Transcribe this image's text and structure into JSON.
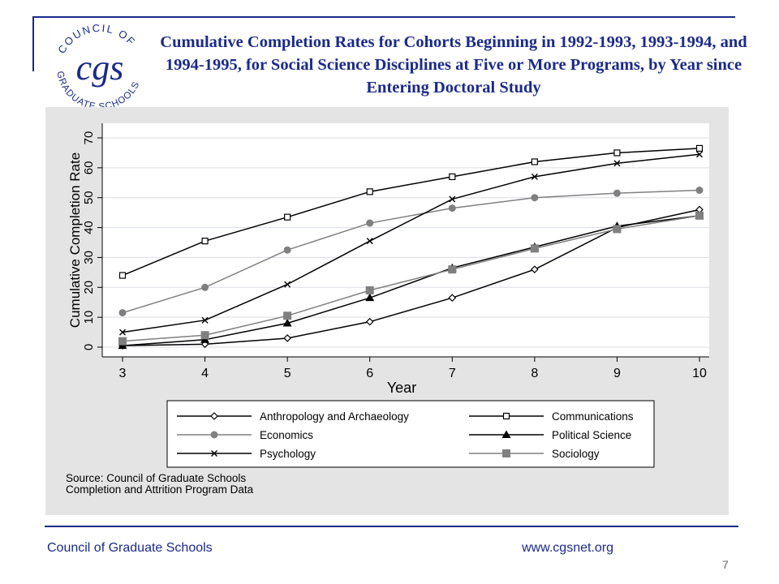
{
  "slide": {
    "title": "Cumulative Completion Rates for Cohorts Beginning in 1992-1993, 1993-1994, and 1994-1995, for Social Science Disciplines at Five or More Programs, by Year since Entering Doctoral Study",
    "footer_left": "Council of Graduate Schools",
    "footer_right": "www.cgsnet.org",
    "page_number": "7"
  },
  "logo": {
    "ring_text": "COUNCIL OF GRADUATE SCHOOLS",
    "monogram": "cgs",
    "color": "#1a2a8a"
  },
  "colors": {
    "brand": "#1a2a8a",
    "panel": "#e4e4e4",
    "black_series": "#000000",
    "gray_series": "#808080"
  },
  "chart_data": {
    "type": "line",
    "title": "",
    "xlabel": "Year",
    "ylabel": "Cumulative Completion Rate",
    "x": [
      3,
      4,
      5,
      6,
      7,
      8,
      9,
      10
    ],
    "xlim": [
      3,
      10
    ],
    "ylim": [
      0,
      70
    ],
    "yticks": [
      0,
      10,
      20,
      30,
      40,
      50,
      60,
      70
    ],
    "grid": true,
    "legend_position": "bottom",
    "source_lines": [
      "Source: Council of Graduate Schools",
      "Completion and Attrition Program Data"
    ],
    "series": [
      {
        "name": "Anthropology and Archaeology",
        "color": "#000000",
        "marker": "diamond",
        "values": [
          0.5,
          1,
          3,
          8.5,
          16.5,
          26,
          40,
          46
        ]
      },
      {
        "name": "Communications",
        "color": "#000000",
        "marker": "square-open",
        "values": [
          24,
          35.5,
          43.5,
          52,
          57,
          62,
          65,
          66.5
        ]
      },
      {
        "name": "Economics",
        "color": "#808080",
        "marker": "circle",
        "values": [
          11.5,
          20,
          32.5,
          41.5,
          46.5,
          50,
          51.5,
          52.5
        ]
      },
      {
        "name": "Political Science",
        "color": "#000000",
        "marker": "triangle",
        "values": [
          0.5,
          2.5,
          8,
          16.5,
          26.5,
          33.5,
          40.5,
          44
        ]
      },
      {
        "name": "Psychology",
        "color": "#000000",
        "marker": "x",
        "values": [
          5,
          9,
          21,
          35.5,
          49.5,
          57,
          61.5,
          64.5
        ]
      },
      {
        "name": "Sociology",
        "color": "#808080",
        "marker": "square-filled",
        "values": [
          2,
          4,
          10.5,
          19,
          26,
          33,
          39.5,
          44
        ]
      }
    ]
  }
}
